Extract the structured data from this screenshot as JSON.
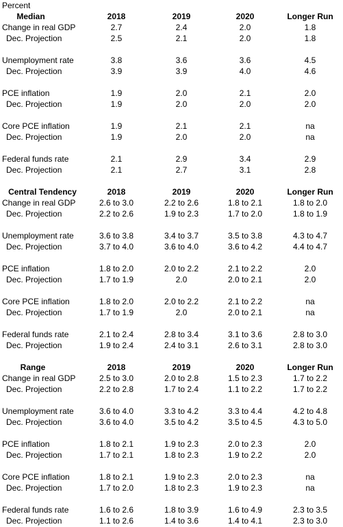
{
  "title": "Percent",
  "sections": [
    {
      "header": "Median",
      "columns": [
        "2018",
        "2019",
        "2020",
        "Longer Run"
      ],
      "groups": [
        [
          {
            "label": "Change in real GDP",
            "values": [
              "2.7",
              "2.4",
              "2.0",
              "1.8"
            ]
          },
          {
            "label": "Dec. Projection",
            "values": [
              "2.5",
              "2.1",
              "2.0",
              "1.8"
            ]
          }
        ],
        [
          {
            "label": "Unemployment rate",
            "values": [
              "3.8",
              "3.6",
              "3.6",
              "4.5"
            ]
          },
          {
            "label": "Dec. Projection",
            "values": [
              "3.9",
              "3.9",
              "4.0",
              "4.6"
            ]
          }
        ],
        [
          {
            "label": "PCE inflation",
            "values": [
              "1.9",
              "2.0",
              "2.1",
              "2.0"
            ]
          },
          {
            "label": "Dec. Projection",
            "values": [
              "1.9",
              "2.0",
              "2.0",
              "2.0"
            ]
          }
        ],
        [
          {
            "label": "Core PCE inflation",
            "values": [
              "1.9",
              "2.1",
              "2.1",
              "na"
            ]
          },
          {
            "label": "Dec. Projection",
            "values": [
              "1.9",
              "2.0",
              "2.0",
              "na"
            ]
          }
        ],
        [
          {
            "label": "Federal funds rate",
            "values": [
              "2.1",
              "2.9",
              "3.4",
              "2.9"
            ]
          },
          {
            "label": "Dec. Projection",
            "values": [
              "2.1",
              "2.7",
              "3.1",
              "2.8"
            ]
          }
        ]
      ]
    },
    {
      "header": "Central Tendency",
      "columns": [
        "2018",
        "2019",
        "2020",
        "Longer Run"
      ],
      "groups": [
        [
          {
            "label": "Change in real GDP",
            "values": [
              "2.6 to 3.0",
              "2.2 to 2.6",
              "1.8 to 2.1",
              "1.8 to 2.0"
            ]
          },
          {
            "label": "Dec. Projection",
            "values": [
              "2.2 to 2.6",
              "1.9 to 2.3",
              "1.7 to 2.0",
              "1.8 to 1.9"
            ]
          }
        ],
        [
          {
            "label": "Unemployment rate",
            "values": [
              "3.6 to 3.8",
              "3.4 to 3.7",
              "3.5 to 3.8",
              "4.3 to 4.7"
            ]
          },
          {
            "label": "Dec. Projection",
            "values": [
              "3.7 to 4.0",
              "3.6 to 4.0",
              "3.6 to 4.2",
              "4.4 to 4.7"
            ]
          }
        ],
        [
          {
            "label": "PCE inflation",
            "values": [
              "1.8 to 2.0",
              "2.0 to 2.2",
              "2.1 to 2.2",
              "2.0"
            ]
          },
          {
            "label": "Dec. Projection",
            "values": [
              "1.7 to 1.9",
              "2.0",
              "2.0 to 2.1",
              "2.0"
            ]
          }
        ],
        [
          {
            "label": "Core PCE inflation",
            "values": [
              "1.8 to 2.0",
              "2.0 to 2.2",
              "2.1 to 2.2",
              "na"
            ]
          },
          {
            "label": "Dec. Projection",
            "values": [
              "1.7 to 1.9",
              "2.0",
              "2.0 to 2.1",
              "na"
            ]
          }
        ],
        [
          {
            "label": "Federal funds rate",
            "values": [
              "2.1 to 2.4",
              "2.8 to 3.4",
              "3.1 to 3.6",
              "2.8 to 3.0"
            ]
          },
          {
            "label": "Dec. Projection",
            "values": [
              "1.9 to 2.4",
              "2.4 to 3.1",
              "2.6 to 3.1",
              "2.8 to 3.0"
            ]
          }
        ]
      ]
    },
    {
      "header": "Range",
      "columns": [
        "2018",
        "2019",
        "2020",
        "Longer Run"
      ],
      "groups": [
        [
          {
            "label": "Change in real GDP",
            "values": [
              "2.5 to 3.0",
              "2.0 to 2.8",
              "1.5 to 2.3",
              "1.7 to 2.2"
            ]
          },
          {
            "label": "Dec. Projection",
            "values": [
              "2.2 to 2.8",
              "1.7 to 2.4",
              "1.1 to 2.2",
              "1.7 to 2.2"
            ]
          }
        ],
        [
          {
            "label": "Unemployment rate",
            "values": [
              "3.6 to 4.0",
              "3.3 to 4.2",
              "3.3 to 4.4",
              "4.2 to 4.8"
            ]
          },
          {
            "label": "Dec. Projection",
            "values": [
              "3.6 to 4.0",
              "3.5 to 4.2",
              "3.5 to 4.5",
              "4.3 to 5.0"
            ]
          }
        ],
        [
          {
            "label": "PCE inflation",
            "values": [
              "1.8 to 2.1",
              "1.9 to 2.3",
              "2.0 to 2.3",
              "2.0"
            ]
          },
          {
            "label": "Dec. Projection",
            "values": [
              "1.7 to 2.1",
              "1.8 to 2.3",
              "1.9 to 2.2",
              "2.0"
            ]
          }
        ],
        [
          {
            "label": "Core PCE inflation",
            "values": [
              "1.8 to 2.1",
              "1.9 to 2.3",
              "2.0 to 2.3",
              "na"
            ]
          },
          {
            "label": "Dec. Projection",
            "values": [
              "1.7 to 2.0",
              "1.8 to 2.3",
              "1.9 to 2.3",
              "na"
            ]
          }
        ],
        [
          {
            "label": "Federal funds rate",
            "values": [
              "1.6 to 2.6",
              "1.8 to 3.9",
              "1.6 to 4.9",
              "2.3 to 3.5"
            ]
          },
          {
            "label": "Dec. Projection",
            "values": [
              "1.1 to 2.6",
              "1.4 to 3.6",
              "1.4 to 4.1",
              "2.3 to 3.0"
            ]
          }
        ]
      ]
    }
  ]
}
